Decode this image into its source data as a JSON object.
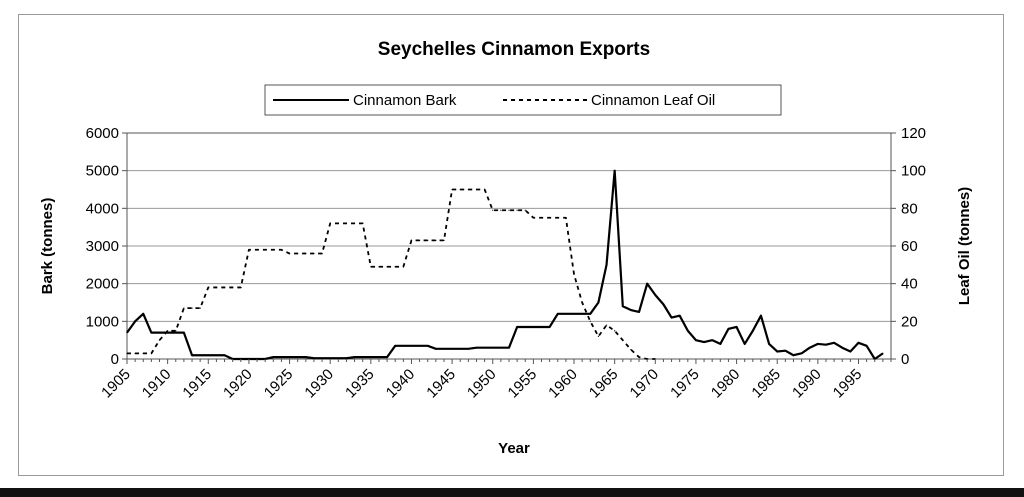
{
  "chart_data": {
    "type": "line",
    "title": "Seychelles Cinnamon Exports",
    "xlabel": "Year",
    "ylabel_left": "Bark (tonnes)",
    "ylabel_right": "Leaf Oil (tonnes)",
    "xlim": [
      1905,
      1999
    ],
    "ylim_left": [
      0,
      6000
    ],
    "ylim_right": [
      0,
      120
    ],
    "x_ticks": [
      "1905",
      "1910",
      "1915",
      "1920",
      "1925",
      "1930",
      "1935",
      "1940",
      "1945",
      "1950",
      "1955",
      "1960",
      "1965",
      "1970",
      "1975",
      "1980",
      "1985",
      "1990",
      "1995"
    ],
    "y_ticks_left": [
      "0",
      "1000",
      "2000",
      "3000",
      "4000",
      "5000",
      "6000"
    ],
    "y_ticks_right": [
      "0",
      "20",
      "40",
      "60",
      "80",
      "100",
      "120"
    ],
    "grid": true,
    "legend_position": "top-center",
    "series": [
      {
        "name": "Cinnamon Bark",
        "axis": "left",
        "style": "solid",
        "color": "#000000",
        "points": [
          [
            1905,
            700
          ],
          [
            1906,
            1000
          ],
          [
            1907,
            1200
          ],
          [
            1908,
            700
          ],
          [
            1909,
            700
          ],
          [
            1910,
            700
          ],
          [
            1911,
            700
          ],
          [
            1912,
            700
          ],
          [
            1913,
            100
          ],
          [
            1914,
            100
          ],
          [
            1915,
            100
          ],
          [
            1916,
            100
          ],
          [
            1917,
            100
          ],
          [
            1918,
            0
          ],
          [
            1919,
            0
          ],
          [
            1920,
            0
          ],
          [
            1921,
            0
          ],
          [
            1922,
            0
          ],
          [
            1923,
            50
          ],
          [
            1924,
            50
          ],
          [
            1925,
            50
          ],
          [
            1926,
            50
          ],
          [
            1927,
            50
          ],
          [
            1928,
            20
          ],
          [
            1929,
            20
          ],
          [
            1930,
            20
          ],
          [
            1931,
            20
          ],
          [
            1932,
            20
          ],
          [
            1933,
            50
          ],
          [
            1934,
            50
          ],
          [
            1935,
            50
          ],
          [
            1936,
            50
          ],
          [
            1937,
            50
          ],
          [
            1938,
            350
          ],
          [
            1939,
            350
          ],
          [
            1940,
            350
          ],
          [
            1941,
            350
          ],
          [
            1942,
            350
          ],
          [
            1943,
            270
          ],
          [
            1944,
            270
          ],
          [
            1945,
            270
          ],
          [
            1946,
            270
          ],
          [
            1947,
            270
          ],
          [
            1948,
            300
          ],
          [
            1949,
            300
          ],
          [
            1950,
            300
          ],
          [
            1951,
            300
          ],
          [
            1952,
            300
          ],
          [
            1953,
            850
          ],
          [
            1954,
            850
          ],
          [
            1955,
            850
          ],
          [
            1956,
            850
          ],
          [
            1957,
            850
          ],
          [
            1958,
            1200
          ],
          [
            1959,
            1200
          ],
          [
            1960,
            1200
          ],
          [
            1961,
            1200
          ],
          [
            1962,
            1200
          ],
          [
            1963,
            1500
          ],
          [
            1964,
            2500
          ],
          [
            1965,
            5000
          ],
          [
            1966,
            1400
          ],
          [
            1967,
            1300
          ],
          [
            1968,
            1250
          ],
          [
            1969,
            2000
          ],
          [
            1970,
            1700
          ],
          [
            1971,
            1450
          ],
          [
            1972,
            1100
          ],
          [
            1973,
            1150
          ],
          [
            1974,
            750
          ],
          [
            1975,
            500
          ],
          [
            1976,
            450
          ],
          [
            1977,
            500
          ],
          [
            1978,
            400
          ],
          [
            1979,
            800
          ],
          [
            1980,
            850
          ],
          [
            1981,
            400
          ],
          [
            1982,
            750
          ],
          [
            1983,
            1150
          ],
          [
            1984,
            400
          ],
          [
            1985,
            200
          ],
          [
            1986,
            220
          ],
          [
            1987,
            100
          ],
          [
            1988,
            150
          ],
          [
            1989,
            300
          ],
          [
            1990,
            400
          ],
          [
            1991,
            380
          ],
          [
            1992,
            430
          ],
          [
            1993,
            300
          ],
          [
            1994,
            200
          ],
          [
            1995,
            430
          ],
          [
            1996,
            350
          ],
          [
            1997,
            0
          ],
          [
            1998,
            150
          ]
        ]
      },
      {
        "name": "Cinnamon Leaf Oil",
        "axis": "right",
        "style": "dashed",
        "color": "#000000",
        "points": [
          [
            1905,
            3
          ],
          [
            1906,
            3
          ],
          [
            1907,
            3
          ],
          [
            1908,
            3
          ],
          [
            1909,
            10
          ],
          [
            1910,
            15
          ],
          [
            1911,
            15
          ],
          [
            1912,
            27
          ],
          [
            1913,
            27
          ],
          [
            1914,
            27
          ],
          [
            1915,
            38
          ],
          [
            1916,
            38
          ],
          [
            1917,
            38
          ],
          [
            1918,
            38
          ],
          [
            1919,
            38
          ],
          [
            1920,
            58
          ],
          [
            1921,
            58
          ],
          [
            1922,
            58
          ],
          [
            1923,
            58
          ],
          [
            1924,
            58
          ],
          [
            1925,
            56
          ],
          [
            1926,
            56
          ],
          [
            1927,
            56
          ],
          [
            1928,
            56
          ],
          [
            1929,
            56
          ],
          [
            1930,
            72
          ],
          [
            1931,
            72
          ],
          [
            1932,
            72
          ],
          [
            1933,
            72
          ],
          [
            1934,
            72
          ],
          [
            1935,
            49
          ],
          [
            1936,
            49
          ],
          [
            1937,
            49
          ],
          [
            1938,
            49
          ],
          [
            1939,
            49
          ],
          [
            1940,
            63
          ],
          [
            1941,
            63
          ],
          [
            1942,
            63
          ],
          [
            1943,
            63
          ],
          [
            1944,
            63
          ],
          [
            1945,
            90
          ],
          [
            1946,
            90
          ],
          [
            1947,
            90
          ],
          [
            1948,
            90
          ],
          [
            1949,
            90
          ],
          [
            1950,
            79
          ],
          [
            1951,
            79
          ],
          [
            1952,
            79
          ],
          [
            1953,
            79
          ],
          [
            1954,
            79
          ],
          [
            1955,
            75
          ],
          [
            1956,
            75
          ],
          [
            1957,
            75
          ],
          [
            1958,
            75
          ],
          [
            1959,
            75
          ],
          [
            1960,
            45
          ],
          [
            1961,
            30
          ],
          [
            1962,
            20
          ],
          [
            1963,
            12
          ],
          [
            1964,
            18
          ],
          [
            1965,
            15
          ],
          [
            1966,
            10
          ],
          [
            1967,
            5
          ],
          [
            1968,
            1
          ],
          [
            1969,
            0
          ],
          [
            1970,
            0
          ]
        ]
      }
    ]
  }
}
